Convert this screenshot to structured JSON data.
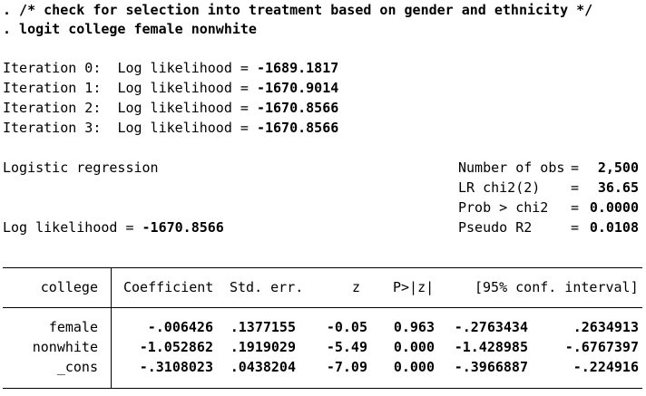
{
  "commands": [
    ". /* check for selection into treatment based on gender and ethnicity */",
    ". logit college female nonwhite"
  ],
  "iterations": [
    {
      "label": "Iteration 0:",
      "text": "Log likelihood =",
      "value": "-1689.1817"
    },
    {
      "label": "Iteration 1:",
      "text": "Log likelihood =",
      "value": "-1670.9014"
    },
    {
      "label": "Iteration 2:",
      "text": "Log likelihood =",
      "value": "-1670.8566"
    },
    {
      "label": "Iteration 3:",
      "text": "Log likelihood =",
      "value": "-1670.8566"
    }
  ],
  "model": {
    "title": "Logistic regression",
    "loglik_label": "Log likelihood =",
    "loglik_value": "-1670.8566"
  },
  "stats": [
    {
      "label": "Number of obs",
      "eq": "=",
      "value": "2,500"
    },
    {
      "label": "LR chi2(2)",
      "eq": "=",
      "value": "36.65"
    },
    {
      "label": "Prob > chi2",
      "eq": "=",
      "value": "0.0000"
    },
    {
      "label": "Pseudo R2",
      "eq": "=",
      "value": "0.0108"
    }
  ],
  "table": {
    "depvar": "college",
    "headers": [
      "Coefficient",
      "Std. err.",
      "z",
      "P>|z|",
      "[95% conf. interval]"
    ],
    "rows": [
      {
        "name": "female",
        "coef": "-.006426",
        "se": ".1377155",
        "z": "-0.05",
        "p": "0.963",
        "lo": "-.2763434",
        "hi": ".2634913"
      },
      {
        "name": "nonwhite",
        "coef": "-1.052862",
        "se": ".1919029",
        "z": "-5.49",
        "p": "0.000",
        "lo": "-1.428985",
        "hi": "-.6767397"
      },
      {
        "name": "_cons",
        "coef": "-.3108023",
        "se": ".0438204",
        "z": "-7.09",
        "p": "0.000",
        "lo": "-.3966887",
        "hi": "-.224916"
      }
    ]
  }
}
